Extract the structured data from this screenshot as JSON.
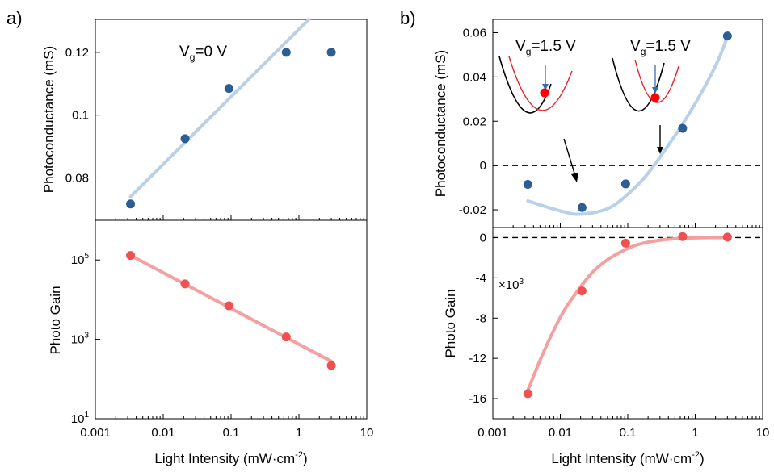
{
  "figure": {
    "panel_a_label": "a)",
    "panel_b_label": "b)",
    "x_axis_label_main": "Light Intensity (mW·cm",
    "x_axis_label_sup": "-2",
    "x_axis_label_end": ")"
  },
  "chart_data": [
    {
      "id": "a_top",
      "type": "scatter",
      "ylabel": "Photoconductance (mS)",
      "xscale": "log",
      "xlim": [
        0.001,
        10
      ],
      "ylim": [
        0.0665,
        0.1305
      ],
      "yticks": [
        0.08,
        0.1,
        0.12
      ],
      "ytick_labels": [
        "0.08",
        "0.1",
        "0.12"
      ],
      "annotation": {
        "main": "V",
        "sub": "g",
        "rest": "=0 V"
      },
      "points": {
        "x": [
          0.0033,
          0.021,
          0.093,
          0.65,
          3.0
        ],
        "y": [
          0.0717,
          0.0925,
          0.1085,
          0.12,
          0.12
        ]
      },
      "fit": {
        "x": [
          0.0033,
          1.4
        ],
        "y": [
          0.074,
          0.1305
        ]
      },
      "point_color": "#2d5d95",
      "fit_color": "#b8d0e8"
    },
    {
      "id": "a_bottom",
      "type": "scatter",
      "xlabel": "Light Intensity (mW·cm-2)",
      "ylabel": "Photo Gain",
      "xscale": "log",
      "yscale": "log",
      "xlim": [
        0.001,
        10
      ],
      "ylim": [
        10,
        1000000
      ],
      "xticks": [
        0.001,
        0.01,
        0.1,
        1,
        10
      ],
      "xtick_labels": [
        "0.001",
        "0.01",
        "0.1",
        "1",
        "10"
      ],
      "yticks": [
        10,
        1000,
        100000
      ],
      "ytick_labels": [
        {
          "base": "10",
          "exp": "1"
        },
        {
          "base": "10",
          "exp": "3"
        },
        {
          "base": "10",
          "exp": "5"
        }
      ],
      "points": {
        "x": [
          0.0033,
          0.021,
          0.093,
          0.65,
          3.0
        ],
        "y": [
          130000,
          25000,
          7000,
          1150,
          220
        ]
      },
      "fit": {
        "x": [
          0.0033,
          3.0
        ],
        "y": [
          130000,
          280
        ]
      },
      "point_color": "#f05050",
      "fit_color": "#f5a0a0"
    },
    {
      "id": "b_top",
      "type": "scatter",
      "ylabel": "Photoconductance (mS)",
      "xscale": "log",
      "xlim": [
        0.001,
        10
      ],
      "ylim": [
        -0.028,
        0.066
      ],
      "yticks": [
        -0.02,
        0,
        0.02,
        0.04,
        0.06
      ],
      "ytick_labels": [
        "-0.02",
        "0",
        "0.02",
        "0.04",
        "0.06"
      ],
      "reference_line_y": 0,
      "annotations": [
        {
          "main": "V",
          "sub": "g",
          "rest": "=1.5 V"
        },
        {
          "main": "V",
          "sub": "g",
          "rest": "=1.5 V"
        }
      ],
      "points": {
        "x": [
          0.0033,
          0.021,
          0.093,
          0.65,
          3.0
        ],
        "y": [
          -0.0085,
          -0.019,
          -0.0083,
          0.0168,
          0.0585
        ]
      },
      "fit": {
        "x": [
          0.0033,
          0.01,
          0.02,
          0.05,
          0.1,
          0.2,
          0.5,
          1,
          2,
          3
        ],
        "y": [
          -0.016,
          -0.0205,
          -0.022,
          -0.0195,
          -0.013,
          -0.0035,
          0.0135,
          0.028,
          0.045,
          0.058
        ]
      },
      "point_color": "#2d5d95",
      "fit_color": "#b8d0e8"
    },
    {
      "id": "b_bottom",
      "type": "scatter",
      "xlabel": "Light Intensity (mW·cm-2)",
      "ylabel": "Photo Gain",
      "xscale": "log",
      "xlim": [
        0.001,
        10
      ],
      "ylim": [
        -18,
        1
      ],
      "xticks": [
        0.001,
        0.01,
        0.1,
        1,
        10
      ],
      "xtick_labels": [
        "0.001",
        "0.01",
        "0.1",
        "1",
        "10"
      ],
      "yticks": [
        -16,
        -12,
        -8,
        -4,
        0
      ],
      "ytick_labels": [
        "-16",
        "-12",
        "-8",
        "-4",
        "0"
      ],
      "multiplier": {
        "main": "×10",
        "exp": "3"
      },
      "reference_line_y": 0,
      "points": {
        "x": [
          0.0033,
          0.021,
          0.093,
          0.65,
          3.0
        ],
        "y": [
          -15.5,
          -5.3,
          -0.55,
          0.1,
          0.05
        ]
      },
      "fit": {
        "x": [
          0.0033,
          0.005,
          0.008,
          0.012,
          0.02,
          0.03,
          0.05,
          0.08,
          0.12,
          0.2,
          0.35,
          0.6,
          1,
          2,
          3
        ],
        "y": [
          -15.2,
          -12.2,
          -9.2,
          -7.0,
          -4.9,
          -3.45,
          -2.2,
          -1.4,
          -0.85,
          -0.45,
          -0.2,
          -0.08,
          -0.03,
          0.0,
          0.0
        ]
      },
      "point_color": "#f05050",
      "fit_color": "#f5a0a0"
    }
  ],
  "insets": {
    "black_color": "#000000",
    "red_color": "#e8202a",
    "dot_color": "#ff0000",
    "arrow_color": "#3a68b8"
  }
}
